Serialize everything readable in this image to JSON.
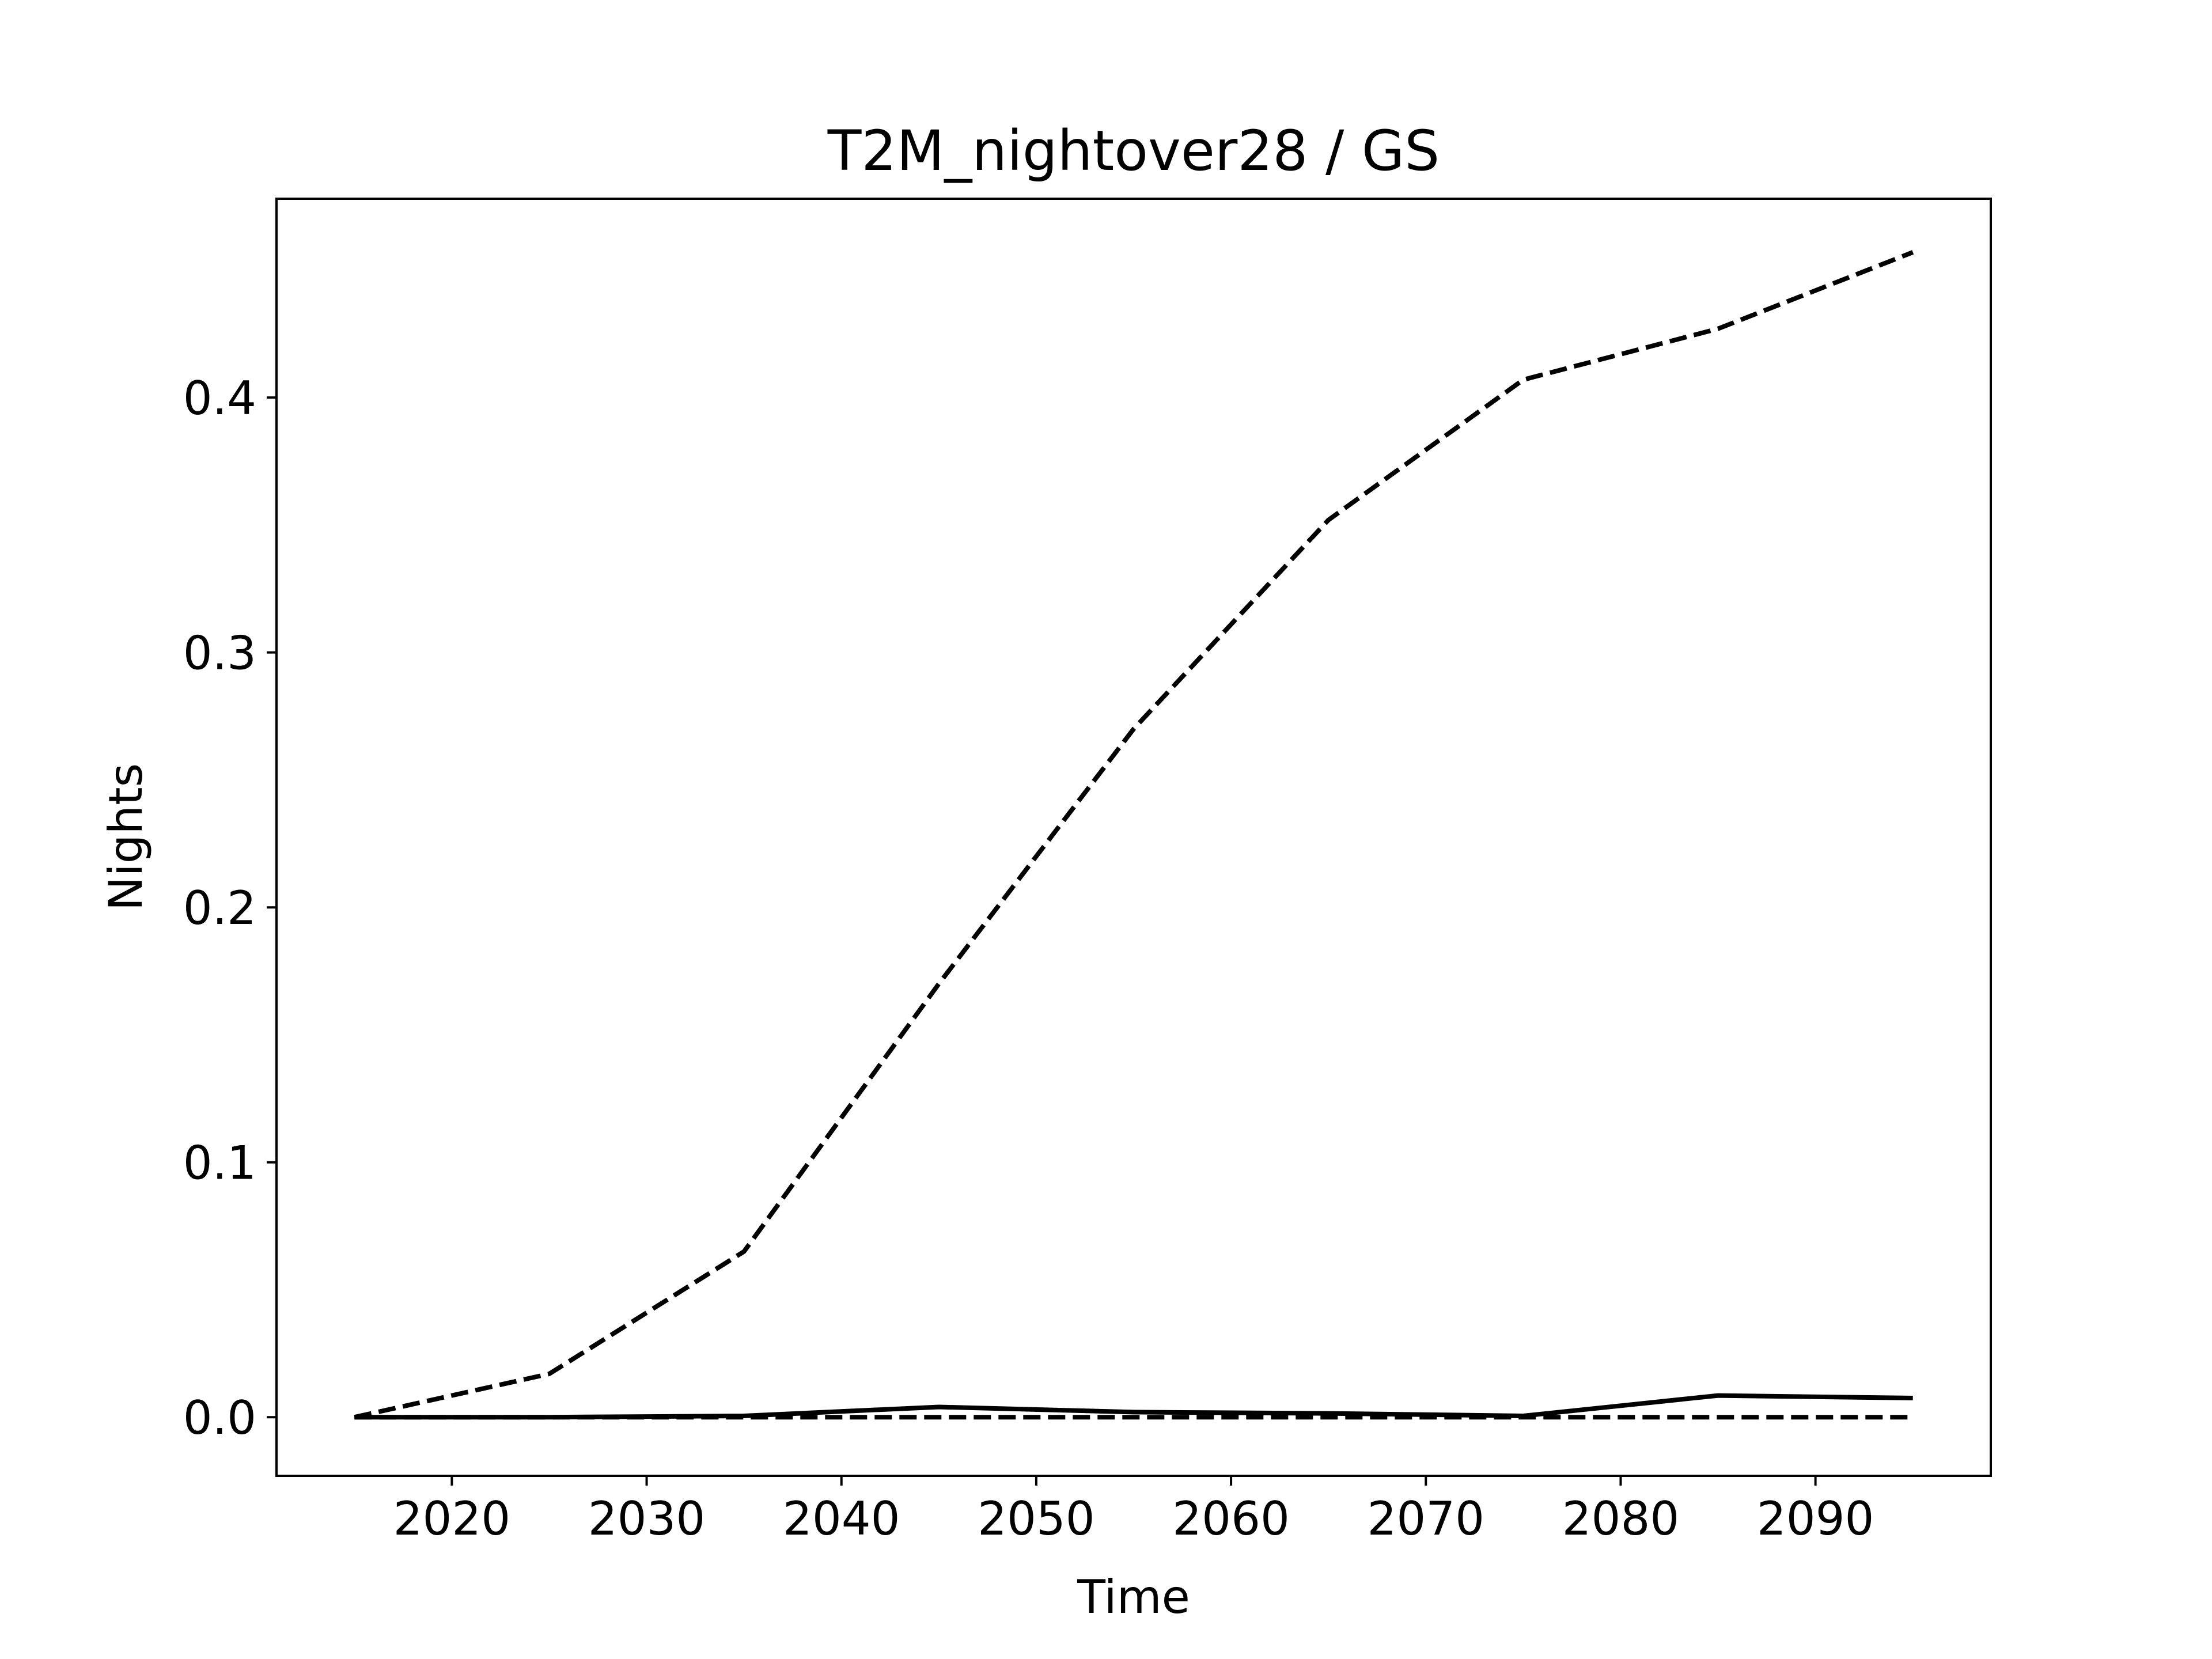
{
  "chart_data": {
    "type": "line",
    "title": "T2M_nightover28 / GS",
    "xlabel": "Time",
    "ylabel": "Nights",
    "xlim": [
      2011,
      2099
    ],
    "ylim": [
      -0.023,
      0.478
    ],
    "xticks": [
      2020,
      2030,
      2040,
      2050,
      2060,
      2070,
      2080,
      2090
    ],
    "yticks": [
      0.0,
      0.1,
      0.2,
      0.3,
      0.4
    ],
    "ytick_labels": [
      "0.0",
      "0.1",
      "0.2",
      "0.3",
      "0.4"
    ],
    "grid": false,
    "x": [
      2015,
      2025,
      2035,
      2045,
      2055,
      2065,
      2075,
      2085,
      2095
    ],
    "series": [
      {
        "style": "dashed",
        "color": "#000000",
        "values": [
          0.0,
          0.017,
          0.065,
          0.17,
          0.27,
          0.352,
          0.407,
          0.427,
          0.457
        ]
      },
      {
        "style": "solid",
        "color": "#000000",
        "values": [
          0.0,
          0.0,
          0.0005,
          0.004,
          0.002,
          0.0015,
          0.0005,
          0.0085,
          0.0075
        ]
      },
      {
        "style": "dashed",
        "color": "#000000",
        "values": [
          0.0,
          0.0,
          0.0,
          0.0,
          0.0,
          0.0,
          0.0,
          0.0,
          0.0
        ]
      }
    ]
  }
}
